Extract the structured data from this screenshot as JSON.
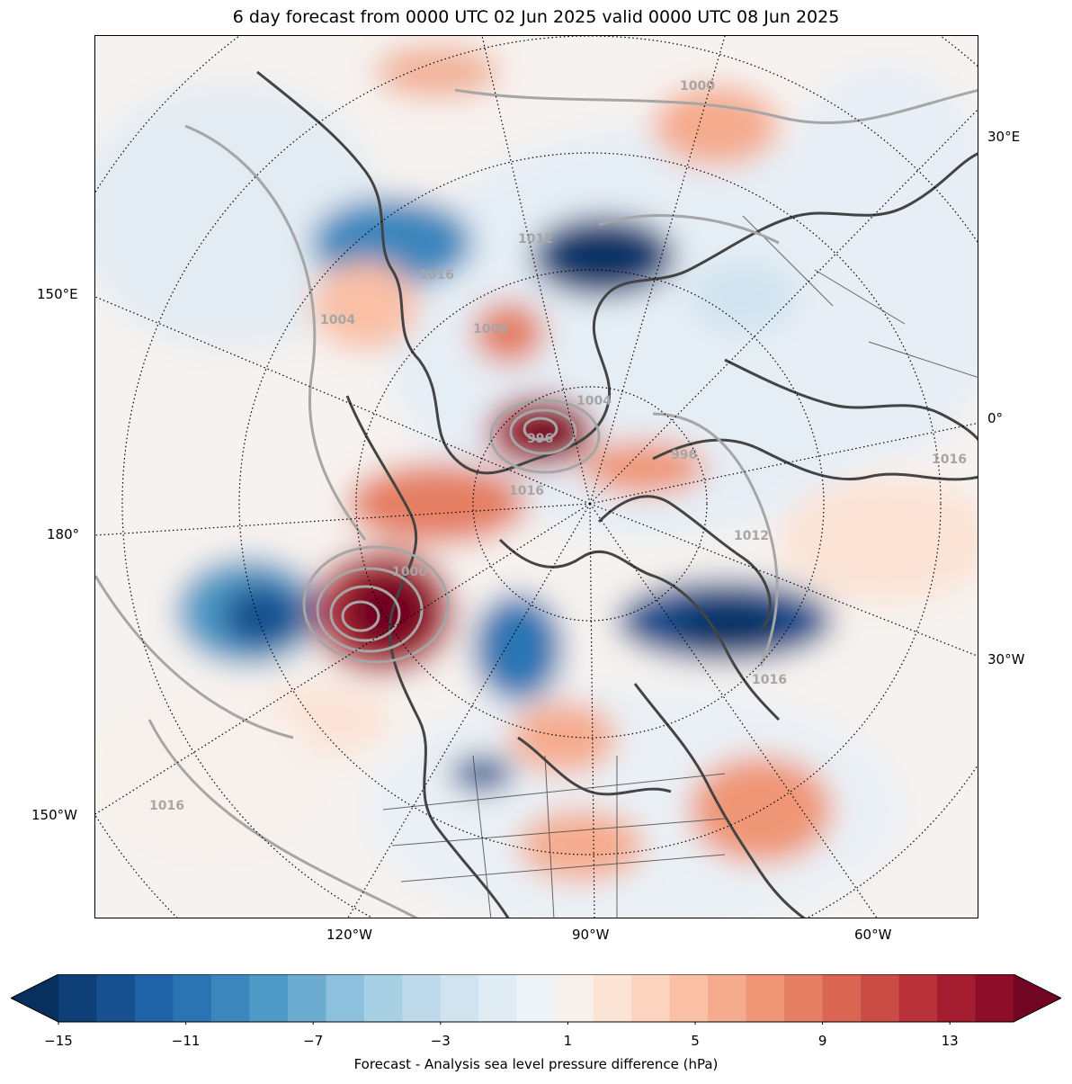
{
  "title": "6 day forecast from 0000 UTC 02 Jun 2025 valid 0000 UTC 08 Jun 2025",
  "map": {
    "projection": "north-polar-stereographic",
    "longitude_labels": {
      "e30": "30°E",
      "e150": "150°E",
      "zero": "0°",
      "d180": "180°",
      "w30": "30°W",
      "w150": "150°W",
      "w120": "120°W",
      "w90": "90°W",
      "w60": "60°W"
    },
    "isobar_labels": [
      "996",
      "1000",
      "1004",
      "1008",
      "1012",
      "1016"
    ],
    "colors": {
      "isobar": "#a6a6a6",
      "coastline": "#444444",
      "graticule": "#000000",
      "neutral_fill": "#f6f2ef"
    }
  },
  "colorbar": {
    "label": "Forecast - Analysis sea level pressure difference (hPa)",
    "tick_labels": [
      "−15",
      "−11",
      "−7",
      "−3",
      "1",
      "5",
      "9",
      "13"
    ],
    "tick_values": [
      -15,
      -11,
      -7,
      -3,
      1,
      5,
      9,
      13
    ],
    "range": [
      -15,
      15
    ],
    "step": 1,
    "colors": [
      "#07305f",
      "#0e3f77",
      "#16508f",
      "#1f62a7",
      "#2b74b3",
      "#3a86bd",
      "#4e9ac6",
      "#6dacd1",
      "#8cc0dd",
      "#a7d0e4",
      "#bdd9ea",
      "#d0e3ef",
      "#e0ecf4",
      "#eef3f7",
      "#f8f0eb",
      "#fbe3d6",
      "#fcd3bf",
      "#f9c0a6",
      "#f5ab8d",
      "#ef9676",
      "#e57f63",
      "#d96552",
      "#ca4c45",
      "#b9323a",
      "#a31c2f",
      "#8c0d27",
      "#720521"
    ]
  }
}
